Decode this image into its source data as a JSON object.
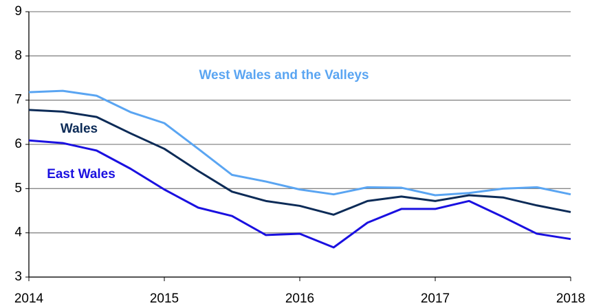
{
  "chart_data": {
    "type": "line",
    "x": [
      2014,
      2014.25,
      2014.5,
      2014.75,
      2015,
      2015.25,
      2015.5,
      2015.75,
      2016,
      2016.25,
      2016.5,
      2016.75,
      2017,
      2017.25,
      2017.5,
      2017.75,
      2018
    ],
    "series": [
      {
        "name": "West Wales and the Valleys",
        "color": "#5aa5f2",
        "values": [
          7.18,
          7.21,
          7.1,
          6.73,
          6.48,
          5.9,
          5.31,
          5.16,
          4.98,
          4.87,
          5.03,
          5.02,
          4.85,
          4.9,
          5.0,
          5.03,
          4.87
        ]
      },
      {
        "name": "Wales",
        "color": "#0c2b57",
        "values": [
          6.78,
          6.74,
          6.62,
          6.25,
          5.9,
          5.4,
          4.93,
          4.72,
          4.61,
          4.41,
          4.72,
          4.82,
          4.72,
          4.85,
          4.8,
          4.62,
          4.47
        ]
      },
      {
        "name": "East Wales",
        "color": "#1a10e0",
        "values": [
          6.09,
          6.03,
          5.86,
          5.45,
          4.98,
          4.57,
          4.38,
          3.95,
          3.98,
          3.67,
          4.23,
          4.54,
          4.54,
          4.72,
          4.36,
          3.98,
          3.86
        ]
      }
    ],
    "xlim": [
      2014,
      2018
    ],
    "xticks": [
      2014,
      2015,
      2016,
      2017,
      2018
    ],
    "ylim": [
      3,
      9
    ],
    "yticks": [
      3,
      4,
      5,
      6,
      7,
      8,
      9
    ],
    "grid": true
  }
}
